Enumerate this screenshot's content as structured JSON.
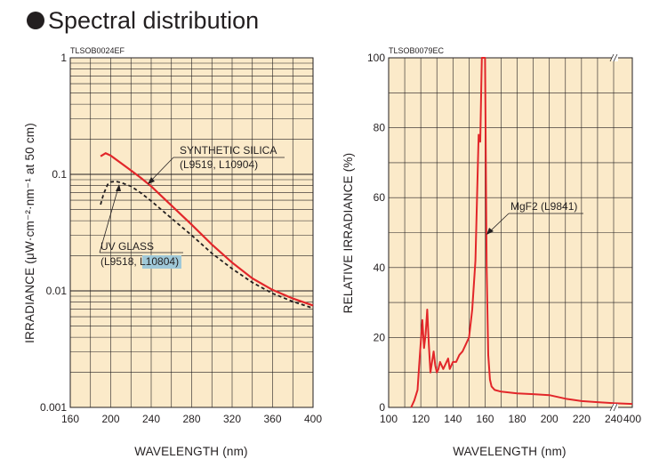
{
  "page_title": "Spectral distribution",
  "chart_data": [
    {
      "type": "line",
      "code": "TLSOB0024EF",
      "xlabel": "WAVELENGTH (nm)",
      "ylabel": "IRRADIANCE (μW·cm⁻²·nm⁻¹ at 50 cm)",
      "xlim": [
        160,
        400
      ],
      "ylim": [
        0.001,
        1
      ],
      "yscale": "log",
      "grid": true,
      "xticks": [
        "160",
        "200",
        "240",
        "280",
        "320",
        "360",
        "400"
      ],
      "yticks": [
        "0.001",
        "0.01",
        "0.1",
        "1"
      ],
      "series": [
        {
          "name": "SYNTHETIC SILICA",
          "name_sub": "(L9519, L10904)",
          "style": "solid",
          "color": "#e2262a",
          "x": [
            190,
            195,
            200,
            210,
            220,
            230,
            240,
            260,
            280,
            300,
            320,
            340,
            360,
            380,
            400
          ],
          "y": [
            0.143,
            0.152,
            0.145,
            0.125,
            0.108,
            0.093,
            0.079,
            0.054,
            0.037,
            0.025,
            0.0175,
            0.0128,
            0.0102,
            0.0086,
            0.0075
          ]
        },
        {
          "name": "UV GLASS",
          "name_sub": "(L9518, L10804)",
          "style": "dashed",
          "color": "#231f20",
          "x": [
            190,
            193,
            197,
            200,
            205,
            210,
            220,
            230,
            240,
            260,
            280,
            300,
            320,
            340,
            360,
            380,
            400
          ],
          "y": [
            0.055,
            0.068,
            0.082,
            0.086,
            0.087,
            0.085,
            0.079,
            0.069,
            0.059,
            0.042,
            0.03,
            0.021,
            0.0155,
            0.0118,
            0.0095,
            0.0081,
            0.0071
          ]
        }
      ]
    },
    {
      "type": "line",
      "code": "TLSOB0079EC",
      "xlabel": "WAVELENGTH (nm)",
      "ylabel": "RELATIVE IRRADIANCE (%)",
      "xlim": [
        100,
        400
      ],
      "ylim": [
        0,
        100
      ],
      "grid": true,
      "axis_break": "between 240 and 400",
      "xticks": [
        "100",
        "120",
        "140",
        "160",
        "180",
        "200",
        "220",
        "240",
        "400"
      ],
      "yticks": [
        "0",
        "20",
        "40",
        "60",
        "80",
        "100"
      ],
      "series": [
        {
          "name": "MgF2 (L9841)",
          "style": "solid",
          "color": "#e2262a",
          "x": [
            114,
            116,
            118,
            119,
            121,
            122,
            123,
            124,
            125,
            126,
            127,
            128,
            129,
            130,
            131,
            132,
            133,
            134,
            135,
            136,
            137,
            138,
            139,
            140,
            142,
            144,
            146,
            148,
            150,
            152,
            154,
            156,
            157,
            158,
            159,
            160,
            161,
            162,
            163,
            164,
            166,
            170,
            180,
            190,
            200,
            210,
            220,
            230,
            240,
            400
          ],
          "y": [
            0,
            2,
            5,
            12,
            25,
            17,
            21,
            28,
            18,
            10,
            13,
            16,
            12,
            10,
            11,
            13,
            12,
            11,
            12,
            13,
            14,
            11,
            12,
            13,
            13,
            15,
            16,
            18,
            20,
            28,
            42,
            78,
            76,
            100,
            100,
            100,
            40,
            15,
            8,
            6,
            5,
            4.5,
            4,
            3.8,
            3.5,
            2.5,
            1.8,
            1.5,
            1.2,
            1
          ]
        }
      ]
    }
  ]
}
